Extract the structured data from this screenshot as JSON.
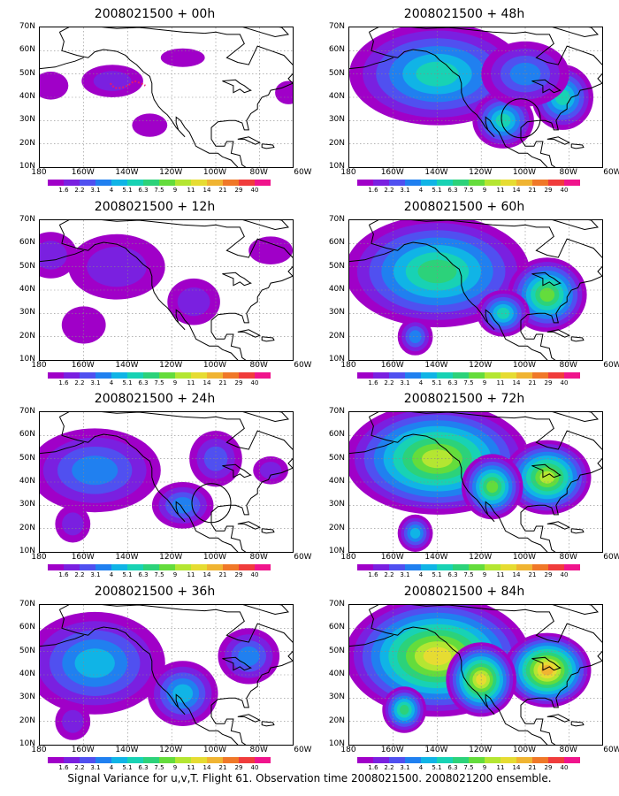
{
  "caption": "Signal Variance for u,v,T. Flight 61. Observation time 2008021500. 2008021200 ensemble.",
  "y_labels": [
    "70N",
    "60N",
    "50N",
    "40N",
    "30N",
    "20N",
    "10N"
  ],
  "x_labels": [
    "180",
    "160W",
    "140W",
    "120W",
    "100W",
    "80W",
    "60W"
  ],
  "colorbar": {
    "labels": [
      "1.6",
      "2.2",
      "3.1",
      "4",
      "5.1",
      "6.3",
      "7.5",
      "9",
      "11",
      "14",
      "21",
      "29",
      "40"
    ],
    "colors": [
      "#a000c8",
      "#7a20e0",
      "#5050f0",
      "#2080f0",
      "#10b4e6",
      "#18d2b4",
      "#2cd27a",
      "#64dc3c",
      "#b4e632",
      "#e6dc32",
      "#f0b432",
      "#f07828",
      "#f03c3c",
      "#f0148c"
    ]
  },
  "panels": [
    {
      "id": "p00",
      "title": "2008021500 + 00h",
      "intensity": 0.25,
      "circle": false,
      "marker": true
    },
    {
      "id": "p48",
      "title": "2008021500 + 48h",
      "intensity": 0.55,
      "circle": true,
      "marker": false
    },
    {
      "id": "p12",
      "title": "2008021500 + 12h",
      "intensity": 0.35,
      "circle": false,
      "marker": false
    },
    {
      "id": "p60",
      "title": "2008021500 + 60h",
      "intensity": 0.68,
      "circle": false,
      "marker": false
    },
    {
      "id": "p24",
      "title": "2008021500 + 24h",
      "intensity": 0.42,
      "circle": true,
      "marker": false
    },
    {
      "id": "p72",
      "title": "2008021500 + 72h",
      "intensity": 0.78,
      "circle": false,
      "marker": false
    },
    {
      "id": "p36",
      "title": "2008021500 + 36h",
      "intensity": 0.5,
      "circle": false,
      "marker": false
    },
    {
      "id": "p84",
      "title": "2008021500 + 84h",
      "intensity": 0.85,
      "circle": false,
      "marker": false
    }
  ]
}
